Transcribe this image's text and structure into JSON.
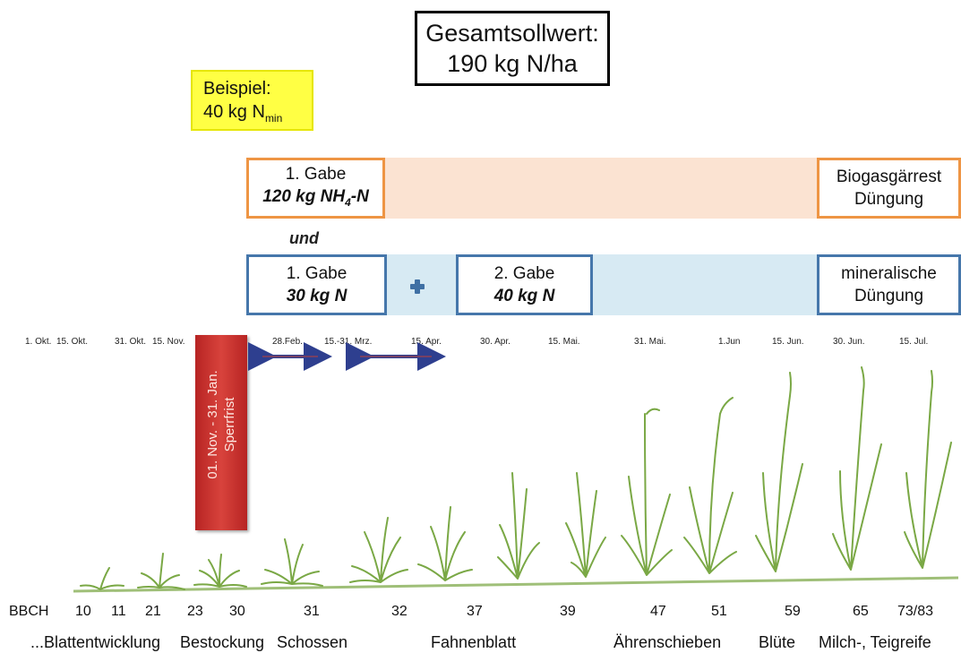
{
  "total": {
    "line1": "Gesamtsollwert:",
    "line2": "190 kg N/ha"
  },
  "example": {
    "line1": "Beispiel:",
    "line2_prefix": "40 kg N",
    "line2_sub": "min"
  },
  "organic": {
    "gabe1_label": "1. Gabe",
    "gabe1_amount_prefix": "120 kg NH",
    "gabe1_amount_sub": "4",
    "gabe1_amount_suffix": "-N",
    "end_line1": "Biogasgärrest",
    "end_line2": "Düngung"
  },
  "connector": "und",
  "mineral": {
    "gabe1_label": "1. Gabe",
    "gabe1_amount": "30 kg N",
    "gabe2_label": "2. Gabe",
    "gabe2_amount": "40 kg N",
    "end_line1": "mineralische",
    "end_line2": "Düngung"
  },
  "dates": [
    "1. Okt.",
    "15. Okt.",
    "31. Okt.",
    "15. Nov.",
    "28.Feb.",
    "15.-31. Mrz.",
    "15. Apr.",
    "30. Apr.",
    "15. Mai.",
    "31. Mai.",
    "1.Jun",
    "15. Jun.",
    "30. Jun.",
    "15. Jul."
  ],
  "sperrfrist": {
    "line1": "01. Nov. - 31. Jan.",
    "line2": "Sperrfrist"
  },
  "bbch": {
    "label": "BBCH",
    "values": [
      "10",
      "11",
      "21",
      "23",
      "30",
      "31",
      "32",
      "37",
      "39",
      "47",
      "51",
      "59",
      "65",
      "73/83"
    ]
  },
  "stages": [
    "...Blattentwicklung",
    "Bestockung",
    "Schossen",
    "Fahnenblatt",
    "Ährenschieben",
    "Blüte",
    "Milch-, Teigreife"
  ],
  "colors": {
    "organic_border": "#ee9544",
    "organic_band": "#fbe3d2",
    "mineral_border": "#4677ab",
    "mineral_band": "#d7eaf3",
    "sperrfrist": "#c0312d",
    "example_bg": "#ffff44",
    "plant": "#7aa845",
    "arrow": "#2e3f8f"
  }
}
